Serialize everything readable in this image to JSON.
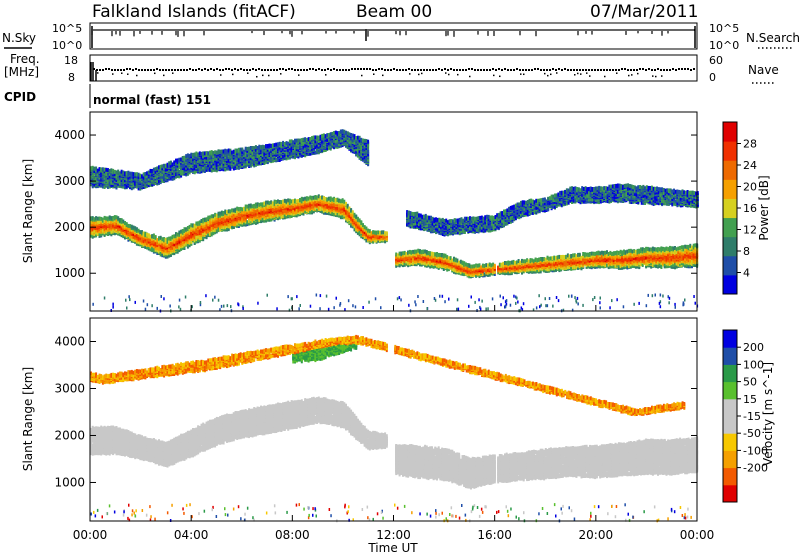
{
  "header": {
    "title": "Falkland Islands (fitACF)",
    "beam": "Beam 00",
    "date": "07/Mar/2011"
  },
  "strip_nsky": {
    "left_label": "N.Sky",
    "right_label": "N.Search",
    "left_ticks": [
      "10^5",
      "10^0"
    ],
    "right_ticks": [
      "10^5",
      "10^0"
    ]
  },
  "strip_freq": {
    "left_label_1": "Freq.",
    "left_label_2": "[MHz]",
    "right_label": "Nave",
    "left_ticks": [
      "18",
      "8"
    ],
    "right_ticks": [
      "60",
      "0"
    ]
  },
  "cpid": {
    "label": "CPID",
    "mode": "normal (fast) 151"
  },
  "colors": {
    "power_scale": [
      "#0000e0",
      "#1f4ea8",
      "#2f7d6a",
      "#42a050",
      "#d6d020",
      "#f5a000",
      "#ee6a00",
      "#f03000",
      "#e00000"
    ],
    "velocity_scale": [
      "#e00000",
      "#f35a00",
      "#f5a000",
      "#f7c800",
      "#c8c8c8",
      "#c8c8c8",
      "#59c02e",
      "#2a9a48",
      "#1f4ea8",
      "#0000e0"
    ],
    "groundscatter": "#c8c8c8"
  },
  "chart_data": [
    {
      "type": "heatmap",
      "name_from_colorbar": "Power",
      "ylabel": "Slant Range [km]",
      "xlabel": "",
      "ylim": [
        180,
        4500
      ],
      "y_ticks": [
        "1000",
        "2000",
        "3000",
        "4000"
      ],
      "x_ticks": [],
      "xlim_hours": [
        0,
        24
      ],
      "colorbar": {
        "label": "Power [dB]",
        "range": [
          0,
          32
        ],
        "ticks": [
          "4",
          "8",
          "12",
          "16",
          "20",
          "24",
          "28"
        ]
      },
      "data_gaps_hours": [
        [
          11.7,
          12.0
        ],
        [
          16.0,
          16.05
        ]
      ],
      "layers": [
        {
          "color_level": "high",
          "t": [
            0,
            1,
            2,
            3,
            4,
            5,
            6,
            7,
            8,
            9,
            10,
            10.7,
            11.0,
            11.7
          ],
          "range": [
            2000,
            2050,
            1750,
            1550,
            1850,
            2100,
            2250,
            2350,
            2420,
            2520,
            2400,
            1950,
            1800,
            1800
          ],
          "width": [
            400,
            350,
            300,
            380,
            420,
            400,
            380,
            400,
            350,
            320,
            380,
            300,
            250,
            180
          ]
        },
        {
          "color_level": "high",
          "t": [
            12.0,
            13.0,
            14.0,
            15.0,
            16.0,
            17.0,
            18.0,
            19.0,
            20.0,
            21.0,
            22.0,
            23.0,
            24.0
          ],
          "range": [
            1300,
            1350,
            1250,
            1050,
            1100,
            1150,
            1200,
            1250,
            1300,
            1300,
            1350,
            1350,
            1400
          ],
          "width": [
            250,
            300,
            300,
            250,
            200,
            250,
            280,
            300,
            300,
            350,
            380,
            420,
            450
          ]
        },
        {
          "color_level": "low",
          "t": [
            0,
            2,
            4,
            6,
            8,
            9,
            10,
            11.0
          ],
          "range": [
            3100,
            3000,
            3400,
            3500,
            3700,
            3800,
            3950,
            3600
          ],
          "width": [
            400,
            300,
            400,
            400,
            350,
            350,
            300,
            500
          ]
        },
        {
          "color_level": "low",
          "t": [
            12.5,
            14.0,
            15.0,
            16.0,
            17.0,
            18.0,
            19.0,
            20.0,
            21.0,
            22.0,
            23.0,
            24.0
          ],
          "range": [
            2200,
            2000,
            2050,
            2100,
            2400,
            2500,
            2700,
            2700,
            2750,
            2700,
            2650,
            2600
          ],
          "width": [
            300,
            300,
            300,
            300,
            300,
            250,
            300,
            300,
            350,
            350,
            300,
            300
          ]
        }
      ]
    },
    {
      "type": "heatmap",
      "name_from_colorbar": "Velocity",
      "ylabel": "Slant Range [km]",
      "xlabel": "Time UT",
      "ylim": [
        180,
        4500
      ],
      "y_ticks": [
        "1000",
        "2000",
        "3000",
        "4000"
      ],
      "x_ticks": [
        "00:00",
        "04:00",
        "08:00",
        "12:00",
        "16:00",
        "20:00",
        "00:00"
      ],
      "xlim_hours": [
        0,
        24
      ],
      "colorbar": {
        "label": "Velocity [m s^-1]",
        "ticks": [
          "200",
          "100",
          "50",
          "15",
          "-15",
          "-50",
          "-100",
          "-200"
        ]
      },
      "data_gaps_hours": [
        [
          11.7,
          12.0
        ],
        [
          16.0,
          16.05
        ]
      ],
      "layers": [
        {
          "color_level": "groundscatter",
          "t": [
            0,
            1,
            2,
            3,
            4,
            5,
            6,
            7,
            8,
            9,
            10,
            10.7,
            11.0,
            11.7
          ],
          "range": [
            1900,
            1900,
            1750,
            1600,
            1850,
            2100,
            2250,
            2350,
            2450,
            2550,
            2450,
            2050,
            1900,
            1900
          ],
          "width": [
            550,
            550,
            450,
            480,
            550,
            550,
            550,
            550,
            550,
            500,
            500,
            400,
            350,
            250
          ]
        },
        {
          "color_level": "groundscatter",
          "t": [
            12.0,
            13.0,
            14.0,
            15.0,
            16.0,
            17.0,
            18.0,
            19.0,
            20.0,
            21.0,
            22.0,
            23.0,
            24.0
          ],
          "range": [
            1500,
            1450,
            1400,
            1200,
            1300,
            1350,
            1400,
            1450,
            1450,
            1500,
            1550,
            1550,
            1600
          ],
          "width": [
            600,
            650,
            650,
            600,
            550,
            550,
            600,
            600,
            650,
            650,
            700,
            700,
            700
          ]
        },
        {
          "color_level": "green",
          "t": [
            8,
            9,
            10,
            10.5
          ],
          "range": [
            3700,
            3750,
            3900,
            3950
          ],
          "width": [
            250,
            250,
            200,
            150
          ]
        },
        {
          "color_level": "orange",
          "t": [
            0,
            0.5,
            4.5,
            5.5,
            9.5,
            10.5,
            21.5,
            23.5
          ],
          "range": [
            3250,
            3200,
            3500,
            3600,
            4000,
            4050,
            2500,
            2650
          ],
          "width": [
            150,
            150,
            200,
            200,
            120,
            120,
            100,
            100
          ]
        }
      ]
    }
  ]
}
